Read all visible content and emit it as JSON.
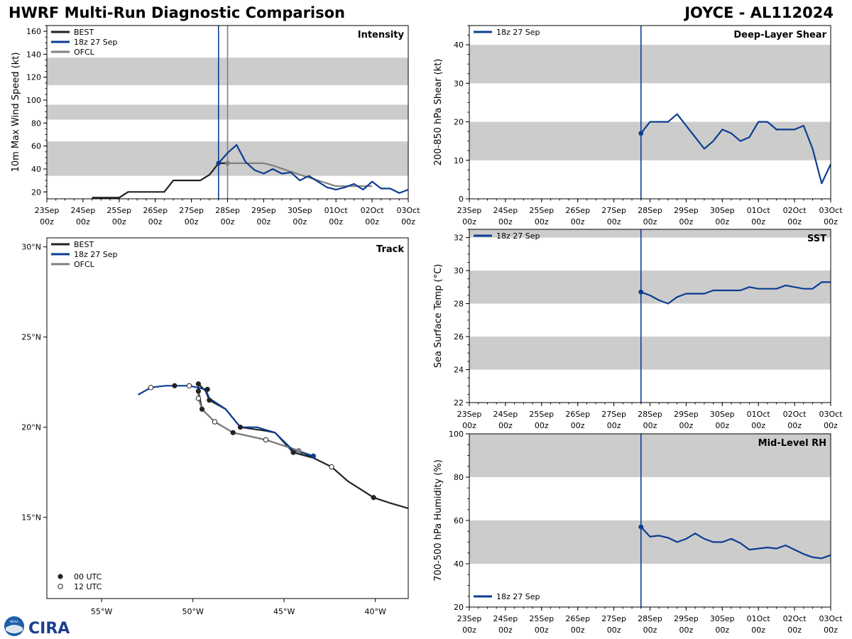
{
  "header": {
    "title": "HWRF Multi-Run Diagnostic Comparison",
    "storm": "JOYCE - AL112024"
  },
  "logo": {
    "noaa_text": "NOAA",
    "cira_text": "CIRA"
  },
  "colors": {
    "best": "#222222",
    "run": "#0b3d91",
    "ofcl": "#808080",
    "band": "#cccccc"
  },
  "time_axis": {
    "ticks": [
      0,
      1,
      2,
      3,
      4,
      5,
      6,
      7,
      8,
      9,
      10
    ],
    "labels": [
      [
        "23Sep",
        "00z"
      ],
      [
        "24Sep",
        "00z"
      ],
      [
        "25Sep",
        "00z"
      ],
      [
        "26Sep",
        "00z"
      ],
      [
        "27Sep",
        "00z"
      ],
      [
        "28Sep",
        "00z"
      ],
      [
        "29Sep",
        "00z"
      ],
      [
        "30Sep",
        "00z"
      ],
      [
        "01Oct",
        "00z"
      ],
      [
        "02Oct",
        "00z"
      ],
      [
        "03Oct",
        "00z"
      ]
    ],
    "init_time": 4.75,
    "ofcl_time": 5.0
  },
  "chart_data": [
    {
      "id": "intensity",
      "type": "line",
      "title": "Intensity",
      "ylabel": "10m Max Wind Speed (kt)",
      "xlim": [
        0,
        10
      ],
      "ylim": [
        14,
        165
      ],
      "yticks": [
        20,
        40,
        60,
        80,
        100,
        120,
        140,
        160
      ],
      "bands": [
        [
          34,
          64
        ],
        [
          83,
          96
        ],
        [
          113,
          137
        ]
      ],
      "legend": [
        "BEST",
        "18z 27 Sep",
        "OFCL"
      ],
      "best": [
        [
          1.25,
          15
        ],
        [
          1.5,
          15
        ],
        [
          1.75,
          15
        ],
        [
          2.0,
          15
        ],
        [
          2.25,
          20
        ],
        [
          2.5,
          20
        ],
        [
          2.75,
          20
        ],
        [
          3.0,
          20
        ],
        [
          3.25,
          20
        ],
        [
          3.5,
          30
        ],
        [
          3.75,
          30
        ],
        [
          4.0,
          30
        ],
        [
          4.25,
          30
        ],
        [
          4.5,
          35
        ],
        [
          4.75,
          45
        ],
        [
          5.0,
          45
        ]
      ],
      "series": [
        {
          "name": "18z 27 Sep",
          "points": [
            [
              4.75,
              45
            ],
            [
              5.0,
              54
            ],
            [
              5.25,
              61
            ],
            [
              5.5,
              46
            ],
            [
              5.75,
              39
            ],
            [
              6.0,
              36
            ],
            [
              6.25,
              40
            ],
            [
              6.5,
              36
            ],
            [
              6.75,
              37
            ],
            [
              7.0,
              30
            ],
            [
              7.25,
              34
            ],
            [
              7.5,
              29
            ],
            [
              7.75,
              24
            ],
            [
              8.0,
              22
            ],
            [
              8.25,
              24
            ],
            [
              8.5,
              27
            ],
            [
              8.75,
              22
            ],
            [
              9.0,
              29
            ],
            [
              9.25,
              23
            ],
            [
              9.5,
              23
            ],
            [
              9.75,
              19
            ],
            [
              10.0,
              22
            ]
          ]
        }
      ],
      "ofcl": [
        [
          5.0,
          45
        ],
        [
          6.0,
          45
        ],
        [
          6.25,
          43
        ],
        [
          7.0,
          35
        ],
        [
          7.5,
          30
        ],
        [
          8.0,
          25
        ],
        [
          9.0,
          25
        ]
      ]
    },
    {
      "id": "shear",
      "type": "line",
      "title": "Deep-Layer Shear",
      "ylabel": "200-850 hPa Shear (kt)",
      "xlim": [
        0,
        10
      ],
      "ylim": [
        0,
        45
      ],
      "yticks": [
        0,
        10,
        20,
        30,
        40
      ],
      "bands": [
        [
          10,
          20
        ],
        [
          30,
          40
        ]
      ],
      "legend": [
        "18z 27 Sep"
      ],
      "series": [
        {
          "name": "18z 27 Sep",
          "points": [
            [
              4.75,
              17
            ],
            [
              5.0,
              20
            ],
            [
              5.25,
              20
            ],
            [
              5.5,
              20
            ],
            [
              5.75,
              22
            ],
            [
              6.0,
              19
            ],
            [
              6.25,
              16
            ],
            [
              6.5,
              13
            ],
            [
              6.75,
              15
            ],
            [
              7.0,
              18
            ],
            [
              7.25,
              17
            ],
            [
              7.5,
              15
            ],
            [
              7.75,
              16
            ],
            [
              8.0,
              20
            ],
            [
              8.25,
              20
            ],
            [
              8.5,
              18
            ],
            [
              8.75,
              18
            ],
            [
              9.0,
              18
            ],
            [
              9.25,
              19
            ],
            [
              9.5,
              13
            ],
            [
              9.75,
              4
            ],
            [
              10.0,
              9
            ]
          ]
        }
      ]
    },
    {
      "id": "sst",
      "type": "line",
      "title": "SST",
      "ylabel": "Sea Surface Temp (°C)",
      "xlim": [
        0,
        10
      ],
      "ylim": [
        22,
        32.5
      ],
      "yticks": [
        22,
        24,
        26,
        28,
        30,
        32
      ],
      "bands": [
        [
          24,
          26
        ],
        [
          28,
          30
        ],
        [
          32,
          32.5
        ]
      ],
      "legend": [
        "18z 27 Sep"
      ],
      "series": [
        {
          "name": "18z 27 Sep",
          "points": [
            [
              4.75,
              28.7
            ],
            [
              5.0,
              28.5
            ],
            [
              5.25,
              28.2
            ],
            [
              5.5,
              28.0
            ],
            [
              5.75,
              28.4
            ],
            [
              6.0,
              28.6
            ],
            [
              6.25,
              28.6
            ],
            [
              6.5,
              28.6
            ],
            [
              6.75,
              28.8
            ],
            [
              7.0,
              28.8
            ],
            [
              7.25,
              28.8
            ],
            [
              7.5,
              28.8
            ],
            [
              7.75,
              29.0
            ],
            [
              8.0,
              28.9
            ],
            [
              8.25,
              28.9
            ],
            [
              8.5,
              28.9
            ],
            [
              8.75,
              29.1
            ],
            [
              9.0,
              29.0
            ],
            [
              9.25,
              28.9
            ],
            [
              9.5,
              28.9
            ],
            [
              9.75,
              29.3
            ],
            [
              10.0,
              29.3
            ]
          ]
        }
      ]
    },
    {
      "id": "rh",
      "type": "line",
      "title": "Mid-Level RH",
      "ylabel": "700-500 hPa Humidity (%)",
      "xlim": [
        0,
        10
      ],
      "ylim": [
        20,
        100
      ],
      "yticks": [
        20,
        40,
        60,
        80,
        100
      ],
      "bands": [
        [
          40,
          60
        ],
        [
          80,
          100
        ]
      ],
      "legend": [
        "18z 27 Sep"
      ],
      "series": [
        {
          "name": "18z 27 Sep",
          "points": [
            [
              4.75,
              57
            ],
            [
              5.0,
              52.5
            ],
            [
              5.25,
              53
            ],
            [
              5.5,
              52
            ],
            [
              5.75,
              50
            ],
            [
              6.0,
              51.5
            ],
            [
              6.25,
              54
            ],
            [
              6.5,
              51.5
            ],
            [
              6.75,
              50
            ],
            [
              7.0,
              50
            ],
            [
              7.25,
              51.5
            ],
            [
              7.5,
              49.5
            ],
            [
              7.75,
              46.5
            ],
            [
              8.0,
              47
            ],
            [
              8.25,
              47.5
            ],
            [
              8.5,
              47
            ],
            [
              8.75,
              48.5
            ],
            [
              9.0,
              46.5
            ],
            [
              9.25,
              44.5
            ],
            [
              9.5,
              43
            ],
            [
              9.75,
              42.5
            ],
            [
              10.0,
              44
            ]
          ]
        }
      ]
    },
    {
      "id": "track",
      "type": "scatter",
      "title": "Track",
      "xlim": [
        -58,
        -38.2
      ],
      "ylim": [
        10.5,
        30.5
      ],
      "xticks": [
        -55,
        -50,
        -45,
        -40
      ],
      "xticklabels": [
        "55°W",
        "50°W",
        "45°W",
        "40°W"
      ],
      "yticks": [
        15,
        20,
        25,
        30
      ],
      "yticklabels": [
        "15°N",
        "20°N",
        "25°N",
        "30°N"
      ],
      "legend": [
        "BEST",
        "18z 27 Sep",
        "OFCL"
      ],
      "marker_legend": [
        "00 UTC",
        "12 UTC"
      ],
      "best": [
        [
          -38.2,
          15.5
        ],
        [
          -39.2,
          15.8
        ],
        [
          -40.1,
          16.1
        ],
        [
          -41.5,
          17.0
        ],
        [
          -42.4,
          17.8
        ],
        [
          -43.4,
          18.3
        ],
        [
          -44.5,
          18.6
        ],
        [
          -45.5,
          19.7
        ],
        [
          -46.0,
          19.8
        ],
        [
          -47.4,
          20.0
        ],
        [
          -48.2,
          21.0
        ],
        [
          -49.1,
          21.5
        ],
        [
          -49.3,
          22.0
        ],
        [
          -49.7,
          22.4
        ],
        [
          -49.7,
          22.0
        ],
        [
          -49.5,
          21.0
        ],
        [
          -48.8,
          20.3
        ],
        [
          -47.8,
          19.7
        ],
        [
          -46.0,
          19.3
        ],
        [
          -44.2,
          18.7
        ],
        [
          -43.4,
          18.3
        ]
      ],
      "best_markers_00": [
        [
          -40.1,
          16.1
        ],
        [
          -44.5,
          18.6
        ],
        [
          -47.8,
          19.7
        ],
        [
          -49.5,
          21.0
        ],
        [
          -49.7,
          22.0
        ],
        [
          -49.7,
          22.4
        ],
        [
          -49.2,
          22.1
        ],
        [
          -49.1,
          21.5
        ],
        [
          -47.4,
          20.0
        ],
        [
          -51.0,
          22.3
        ]
      ],
      "best_markers_12": [
        [
          -42.4,
          17.8
        ],
        [
          -46.0,
          19.3
        ],
        [
          -48.8,
          20.3
        ],
        [
          -49.7,
          21.6
        ],
        [
          -50.2,
          22.3
        ],
        [
          -52.3,
          22.2
        ]
      ],
      "series": [
        {
          "name": "18z 27 Sep",
          "points": [
            [
              -43.4,
              18.4
            ],
            [
              -44.5,
              18.7
            ],
            [
              -45.5,
              19.7
            ],
            [
              -46.5,
              20.0
            ],
            [
              -47.4,
              20.0
            ],
            [
              -48.2,
              21.0
            ],
            [
              -49.1,
              21.6
            ],
            [
              -49.3,
              22.1
            ],
            [
              -50.2,
              22.3
            ],
            [
              -51.5,
              22.3
            ],
            [
              -52.3,
              22.2
            ],
            [
              -53.0,
              21.8
            ]
          ]
        }
      ],
      "ofcl": [
        [
          -43.4,
          18.4
        ],
        [
          -44.2,
          18.7
        ],
        [
          -46.0,
          19.3
        ],
        [
          -47.8,
          19.7
        ],
        [
          -48.8,
          20.3
        ],
        [
          -49.5,
          21.0
        ],
        [
          -49.7,
          21.6
        ],
        [
          -49.7,
          22.0
        ]
      ]
    }
  ]
}
